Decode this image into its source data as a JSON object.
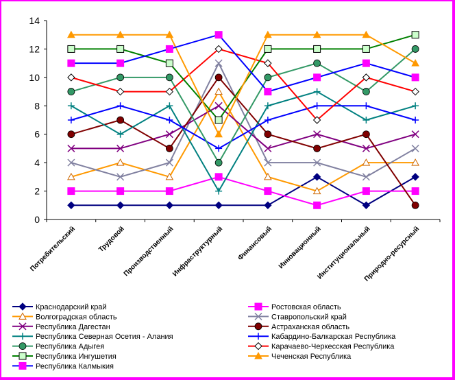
{
  "chart_data": {
    "type": "line",
    "categories": [
      "Потребительский",
      "Трудовой",
      "Производственный",
      "Инфраструктурный",
      "Финансовый",
      "Инновационный",
      "Институциональный",
      "Природно-ресурсный"
    ],
    "ylim": [
      0,
      14
    ],
    "yticks": [
      "0",
      "2",
      "4",
      "6",
      "8",
      "10",
      "12",
      "14"
    ],
    "grid": false,
    "legend_position": "bottom",
    "series": [
      {
        "name": "Краснодарский край",
        "color": "#000080",
        "marker": "diamond",
        "values": [
          1,
          1,
          1,
          1,
          1,
          3,
          1,
          3
        ]
      },
      {
        "name": "Ростовская область",
        "color": "#ff00ff",
        "marker": "square",
        "values": [
          2,
          2,
          2,
          3,
          2,
          1,
          2,
          2
        ]
      },
      {
        "name": "Волгоградская область",
        "color": "#ff9900",
        "marker": "triangle-open",
        "values": [
          3,
          4,
          3,
          9,
          3,
          2,
          4,
          4
        ]
      },
      {
        "name": "Ставропольский край",
        "color": "#8080a0",
        "marker": "x",
        "values": [
          4,
          3,
          4,
          11,
          4,
          4,
          3,
          5
        ]
      },
      {
        "name": "Республика Дагестан",
        "color": "#800080",
        "marker": "x",
        "values": [
          5,
          5,
          6,
          8,
          5,
          6,
          5,
          6
        ]
      },
      {
        "name": "Астраханская область",
        "color": "#800000",
        "marker": "circle",
        "values": [
          6,
          7,
          5,
          10,
          6,
          5,
          6,
          1
        ]
      },
      {
        "name": "Республика Северная Осетия - Алания",
        "color": "#008080",
        "marker": "plus",
        "values": [
          8,
          6,
          8,
          2,
          8,
          9,
          7,
          8
        ]
      },
      {
        "name": "Кабардино-Балкарская Республика",
        "color": "#0000ff",
        "marker": "plus",
        "values": [
          7,
          8,
          7,
          5,
          7,
          8,
          8,
          7
        ]
      },
      {
        "name": "Республика Адыгея",
        "color": "#339966",
        "marker": "circle",
        "values": [
          9,
          10,
          10,
          4,
          10,
          11,
          9,
          12
        ]
      },
      {
        "name": "Карачаево-Черкесская Республика",
        "color": "#ff0000",
        "marker": "diamond-open",
        "values": [
          10,
          9,
          9,
          12,
          11,
          7,
          10,
          9
        ]
      },
      {
        "name": "Республика Ингушетия",
        "color": "#008000",
        "marker": "square-open",
        "values": [
          12,
          12,
          11,
          7,
          12,
          12,
          12,
          13
        ]
      },
      {
        "name": "Чеченская Республика",
        "color": "#ff9900",
        "marker": "triangle",
        "values": [
          13,
          13,
          13,
          6,
          13,
          13,
          13,
          11
        ]
      },
      {
        "name": "Республика Калмыкия",
        "color": "#0000ff",
        "marker": "square-magenta",
        "values": [
          11,
          11,
          12,
          13,
          9,
          10,
          11,
          10
        ]
      }
    ]
  }
}
